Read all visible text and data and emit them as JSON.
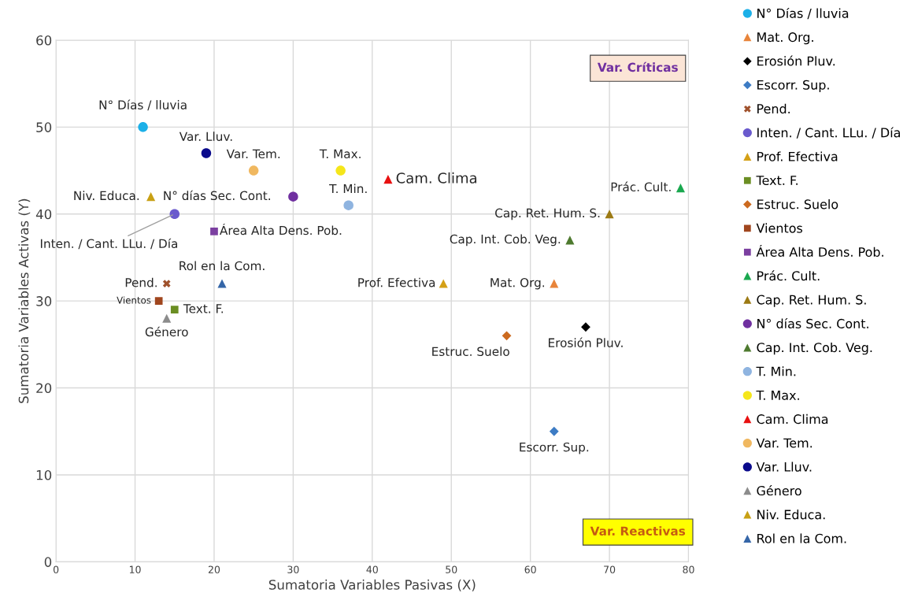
{
  "chart_data": {
    "type": "scatter",
    "xlabel": "Sumatoria Variables Pasivas (X)",
    "ylabel": "Sumatoria Variables Activas (Y)",
    "xlim": [
      0,
      80
    ],
    "xticks": [
      0,
      10,
      20,
      30,
      40,
      50,
      60,
      70,
      80
    ],
    "ylim": [
      0,
      60
    ],
    "yticks": [
      0,
      10,
      20,
      30,
      40,
      50,
      60
    ],
    "grid": true,
    "legend": "right",
    "annotations": [
      "Var. Críticas",
      "Var. Reactivas"
    ],
    "series": [
      {
        "name": "N° Días / lluvia",
        "color": "#1cb0e8",
        "marker": "circle",
        "x": [
          11
        ],
        "values": [
          50
        ]
      },
      {
        "name": "Mat. Org.",
        "color": "#e8843a",
        "marker": "triangle",
        "x": [
          63
        ],
        "values": [
          32
        ]
      },
      {
        "name": "Erosión Pluv.",
        "color": "#000000",
        "marker": "diamond",
        "x": [
          67
        ],
        "values": [
          27
        ]
      },
      {
        "name": "Escorr. Sup.",
        "color": "#3d7cc4",
        "marker": "diamond",
        "x": [
          63
        ],
        "values": [
          15
        ]
      },
      {
        "name": "Pend.",
        "color": "#a0522d",
        "marker": "cross",
        "x": [
          14
        ],
        "values": [
          32
        ]
      },
      {
        "name": "Inten. / Cant. LLu. / Día",
        "color": "#6a5acd",
        "marker": "circle",
        "x": [
          15
        ],
        "values": [
          40
        ]
      },
      {
        "name": "Prof. Efectiva",
        "color": "#d4a017",
        "marker": "triangle",
        "x": [
          49
        ],
        "values": [
          32
        ]
      },
      {
        "name": "Text. F.",
        "color": "#6b8e23",
        "marker": "square",
        "x": [
          15
        ],
        "values": [
          29
        ]
      },
      {
        "name": "Estruc. Suelo",
        "color": "#cc6a1f",
        "marker": "diamond",
        "x": [
          57
        ],
        "values": [
          26
        ]
      },
      {
        "name": "Vientos",
        "color": "#a0461e",
        "marker": "square",
        "x": [
          13
        ],
        "values": [
          30
        ]
      },
      {
        "name": "Área Alta Dens. Pob.",
        "color": "#7b3fa0",
        "marker": "square",
        "x": [
          20
        ],
        "values": [
          38
        ]
      },
      {
        "name": "Prác. Cult.",
        "color": "#1aa84f",
        "marker": "triangle",
        "x": [
          79
        ],
        "values": [
          43
        ]
      },
      {
        "name": "Cap. Ret. Hum. S.",
        "color": "#9c7a14",
        "marker": "triangle",
        "x": [
          70
        ],
        "values": [
          40
        ]
      },
      {
        "name": "N° días Sec. Cont.",
        "color": "#7030a0",
        "marker": "circle",
        "x": [
          30
        ],
        "values": [
          42
        ]
      },
      {
        "name": "Cap. Int. Cob. Veg.",
        "color": "#4e7a2f",
        "marker": "triangle",
        "x": [
          65
        ],
        "values": [
          37
        ]
      },
      {
        "name": "T. Min.",
        "color": "#8fb4e0",
        "marker": "circle",
        "x": [
          37
        ],
        "values": [
          41
        ]
      },
      {
        "name": "T. Max.",
        "color": "#f5e61a",
        "marker": "circle",
        "x": [
          36
        ],
        "values": [
          45
        ]
      },
      {
        "name": "Cam. Clima",
        "color": "#e81010",
        "marker": "triangle",
        "x": [
          42
        ],
        "values": [
          44
        ]
      },
      {
        "name": "Var. Tem.",
        "color": "#f0b860",
        "marker": "circle",
        "x": [
          25
        ],
        "values": [
          45
        ]
      },
      {
        "name": "Var. Lluv.",
        "color": "#0a0a8c",
        "marker": "circle",
        "x": [
          19
        ],
        "values": [
          47
        ]
      },
      {
        "name": "Género",
        "color": "#8c8c8c",
        "marker": "triangle",
        "x": [
          14
        ],
        "values": [
          28
        ]
      },
      {
        "name": "Niv. Educa.",
        "color": "#c8a014",
        "marker": "triangle",
        "x": [
          12
        ],
        "values": [
          42
        ]
      },
      {
        "name": "Rol en la Com.",
        "color": "#3566a8",
        "marker": "triangle",
        "x": [
          21
        ],
        "values": [
          32
        ]
      }
    ]
  }
}
